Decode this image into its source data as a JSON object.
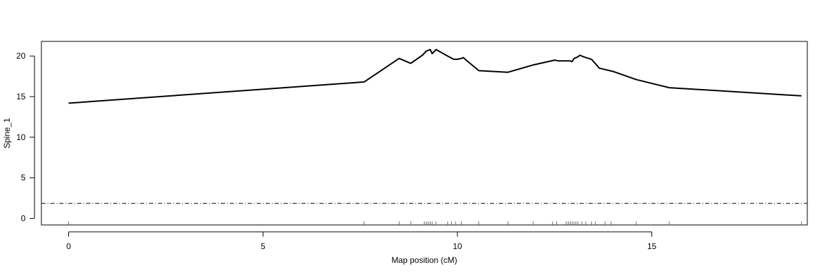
{
  "chart_data": {
    "type": "line",
    "title": "",
    "xlabel": "Map position (cM)",
    "ylabel": "Spine_1",
    "xlim": [
      -0.7,
      19.0
    ],
    "ylim": [
      -0.8,
      21.8
    ],
    "x_ticks": [
      0,
      5,
      10,
      15
    ],
    "y_ticks": [
      0,
      5,
      10,
      15,
      20
    ],
    "grid": false,
    "legend": "none",
    "series": [
      {
        "color": "#000000",
        "points": [
          [
            0.0,
            14.2
          ],
          [
            7.6,
            16.8
          ],
          [
            8.5,
            19.7
          ],
          [
            8.8,
            19.1
          ],
          [
            9.1,
            20.1
          ],
          [
            9.2,
            20.6
          ],
          [
            9.25,
            20.7
          ],
          [
            9.3,
            20.8
          ],
          [
            9.35,
            20.3
          ],
          [
            9.45,
            20.8
          ],
          [
            9.75,
            20.0
          ],
          [
            9.9,
            19.6
          ],
          [
            10.0,
            19.6
          ],
          [
            10.1,
            19.7
          ],
          [
            10.15,
            19.8
          ],
          [
            10.55,
            18.2
          ],
          [
            11.3,
            18.0
          ],
          [
            11.95,
            18.9
          ],
          [
            12.5,
            19.5
          ],
          [
            12.6,
            19.4
          ],
          [
            12.9,
            19.4
          ],
          [
            12.95,
            19.3
          ],
          [
            13.0,
            19.7
          ],
          [
            13.1,
            19.9
          ],
          [
            13.15,
            20.1
          ],
          [
            13.25,
            19.9
          ],
          [
            13.45,
            19.6
          ],
          [
            13.65,
            18.5
          ],
          [
            14.0,
            18.1
          ],
          [
            14.6,
            17.1
          ],
          [
            15.45,
            16.1
          ],
          [
            18.85,
            15.1
          ]
        ]
      }
    ],
    "threshold": {
      "value": 1.85,
      "style": "dot-dash"
    },
    "rug": [
      0.0,
      7.6,
      8.5,
      8.8,
      9.15,
      9.2,
      9.25,
      9.3,
      9.35,
      9.45,
      9.75,
      9.85,
      9.95,
      10.1,
      10.55,
      11.3,
      11.95,
      12.45,
      12.55,
      12.8,
      12.85,
      12.9,
      12.95,
      13.0,
      13.05,
      13.1,
      13.2,
      13.3,
      13.45,
      13.55,
      13.8,
      13.95,
      14.6,
      15.45,
      18.85
    ]
  }
}
